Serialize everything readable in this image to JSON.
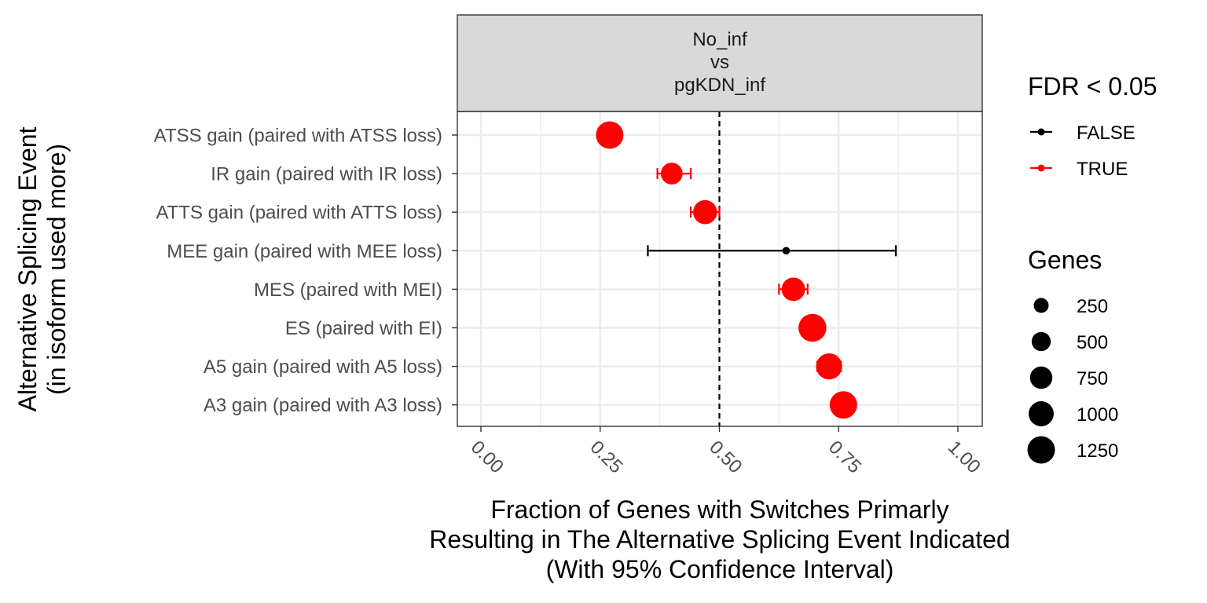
{
  "chart_data": {
    "type": "scatter",
    "subtype": "point-with-confidence-interval",
    "facet_label_lines": [
      "No_inf",
      "vs",
      "pgKDN_inf"
    ],
    "xlabel_lines": [
      "Fraction of Genes with Switches Primarly",
      "Resulting in The Alternative Splicing Event Indicated",
      "(With 95% Confidence Interval)"
    ],
    "ylabel_lines": [
      "Alternative Splicing Event",
      "(in isoform used more)"
    ],
    "xlim": [
      0,
      1
    ],
    "x_ticks": [
      0,
      0.25,
      0.5,
      0.75,
      1
    ],
    "x_tick_labels": [
      "0.00",
      "0.25",
      "0.50",
      "0.75",
      "1.00"
    ],
    "reference_line_x": 0.5,
    "grid": true,
    "categories": [
      "ATSS gain (paired with ATSS loss)",
      "IR gain (paired with IR loss)",
      "ATTS gain (paired with ATTS loss)",
      "MEE gain (paired with MEE loss)",
      "MES (paired with MEI)",
      "ES (paired with EI)",
      "A5 gain (paired with A5 loss)",
      "A3 gain (paired with A3 loss)"
    ],
    "points": [
      {
        "fraction": 0.27,
        "ci_low": 0.26,
        "ci_high": 0.28,
        "genes": 1250,
        "significant": true
      },
      {
        "fraction": 0.4,
        "ci_low": 0.37,
        "ci_high": 0.44,
        "genes": 700,
        "significant": true
      },
      {
        "fraction": 0.47,
        "ci_low": 0.44,
        "ci_high": 0.5,
        "genes": 900,
        "significant": true
      },
      {
        "fraction": 0.64,
        "ci_low": 0.35,
        "ci_high": 0.87,
        "genes": 20,
        "significant": false
      },
      {
        "fraction": 0.655,
        "ci_low": 0.625,
        "ci_high": 0.685,
        "genes": 850,
        "significant": true
      },
      {
        "fraction": 0.695,
        "ci_low": 0.685,
        "ci_high": 0.705,
        "genes": 1300,
        "significant": true
      },
      {
        "fraction": 0.73,
        "ci_low": 0.705,
        "ci_high": 0.755,
        "genes": 1100,
        "significant": true
      },
      {
        "fraction": 0.76,
        "ci_low": 0.75,
        "ci_high": 0.77,
        "genes": 1250,
        "significant": true
      }
    ],
    "legend_color": {
      "title": "FDR < 0.05",
      "entries": [
        {
          "label": "FALSE",
          "color": "#000000"
        },
        {
          "label": "TRUE",
          "color": "#ff0000"
        }
      ]
    },
    "legend_size": {
      "title": "Genes",
      "entries": [
        {
          "label": "250",
          "value": 250
        },
        {
          "label": "500",
          "value": 500
        },
        {
          "label": "750",
          "value": 750
        },
        {
          "label": "1000",
          "value": 1000
        },
        {
          "label": "1250",
          "value": 1250
        }
      ]
    },
    "legend_placement": "right",
    "colors": {
      "significant": "#ff0000",
      "not_significant": "#000000",
      "strip_fill": "#d9d9d9",
      "grid": "#ebebeb"
    }
  }
}
